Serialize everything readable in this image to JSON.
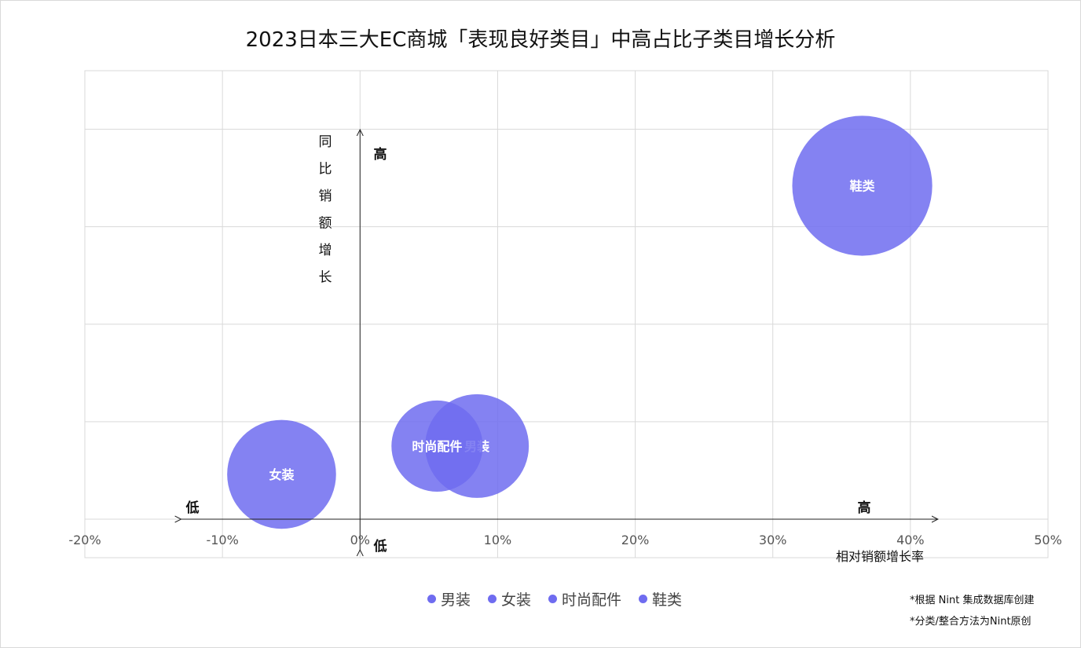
{
  "chart_data": {
    "type": "scatter",
    "subtype": "bubble",
    "title": "2023日本三大EC商城「表现良好类目」中高占比子类目增长分析",
    "xlabel": "相对销额增长率",
    "ylabel": "同比销额增长",
    "xlim": [
      -20,
      50
    ],
    "xticks": [
      "-20%",
      "-10%",
      "0%",
      "10%",
      "20%",
      "30%",
      "40%",
      "50%"
    ],
    "ylim": [
      0,
      4.6
    ],
    "grid": true,
    "legend_position": "bottom",
    "quadrant_labels": {
      "x_low": "低",
      "x_high": "高",
      "y_low": "低",
      "y_high": "高"
    },
    "bubble_color": "#6f6cf0",
    "series": [
      {
        "name": "男装",
        "x": 8.5,
        "y": 0.75,
        "size": 1.0
      },
      {
        "name": "女装",
        "x": -5.7,
        "y": 0.46,
        "size": 1.05
      },
      {
        "name": "时尚配件",
        "x": 5.6,
        "y": 0.75,
        "size": 0.88
      },
      {
        "name": "鞋类",
        "x": 36.5,
        "y": 3.42,
        "size": 1.35
      }
    ]
  },
  "notes": [
    "*根据 Nint 集成数据库创建",
    "*分类/整合方法为Nint原创"
  ]
}
